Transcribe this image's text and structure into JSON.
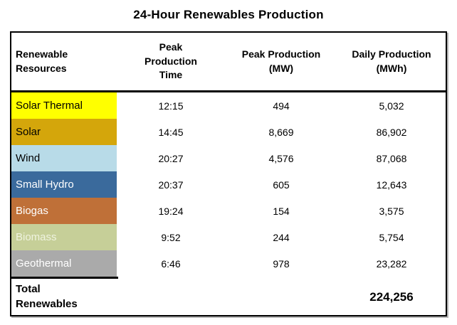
{
  "title": "24-Hour Renewables Production",
  "table": {
    "headers": [
      "Renewable\nResources",
      "Peak\nProduction\nTime",
      "Peak Production\n(MW)",
      "Daily Production\n(MWh)"
    ],
    "rows": [
      {
        "resource": "Solar Thermal",
        "time": "12:15",
        "peak_mw": "494",
        "daily_mwh": "5,032",
        "bg": "#FFFF00",
        "fg": "#000000"
      },
      {
        "resource": "Solar",
        "time": "14:45",
        "peak_mw": "8,669",
        "daily_mwh": "86,902",
        "bg": "#D4A60B",
        "fg": "#000000"
      },
      {
        "resource": "Wind",
        "time": "20:27",
        "peak_mw": "4,576",
        "daily_mwh": "87,068",
        "bg": "#B8DBE8",
        "fg": "#000000"
      },
      {
        "resource": "Small Hydro",
        "time": "20:37",
        "peak_mw": "605",
        "daily_mwh": "12,643",
        "bg": "#3A6A9C",
        "fg": "#FFFFFF"
      },
      {
        "resource": "Biogas",
        "time": "19:24",
        "peak_mw": "154",
        "daily_mwh": "3,575",
        "bg": "#BF7038",
        "fg": "#FFFFFF"
      },
      {
        "resource": "Biomass",
        "time": "9:52",
        "peak_mw": "244",
        "daily_mwh": "5,754",
        "bg": "#C6CF98",
        "fg": "#EFF3DF"
      },
      {
        "resource": "Geothermal",
        "time": "6:46",
        "peak_mw": "978",
        "daily_mwh": "23,282",
        "bg": "#AAAAAA",
        "fg": "#FFFFFF"
      }
    ],
    "total": {
      "label": "Total\nRenewables",
      "daily_mwh": "224,256"
    }
  },
  "chart_data": {
    "type": "table",
    "title": "24-Hour Renewables Production",
    "columns": [
      "Renewable Resources",
      "Peak Production Time",
      "Peak Production (MW)",
      "Daily Production (MWh)"
    ],
    "rows": [
      [
        "Solar Thermal",
        "12:15",
        494,
        5032
      ],
      [
        "Solar",
        "14:45",
        8669,
        86902
      ],
      [
        "Wind",
        "20:27",
        4576,
        87068
      ],
      [
        "Small Hydro",
        "20:37",
        605,
        12643
      ],
      [
        "Biogas",
        "19:24",
        154,
        3575
      ],
      [
        "Biomass",
        "9:52",
        244,
        5754
      ],
      [
        "Geothermal",
        "6:46",
        978,
        23282
      ]
    ],
    "total_daily_production_mwh": 224256,
    "row_colors": [
      "#FFFF00",
      "#D4A60B",
      "#B8DBE8",
      "#3A6A9C",
      "#BF7038",
      "#C6CF98",
      "#AAAAAA"
    ]
  }
}
